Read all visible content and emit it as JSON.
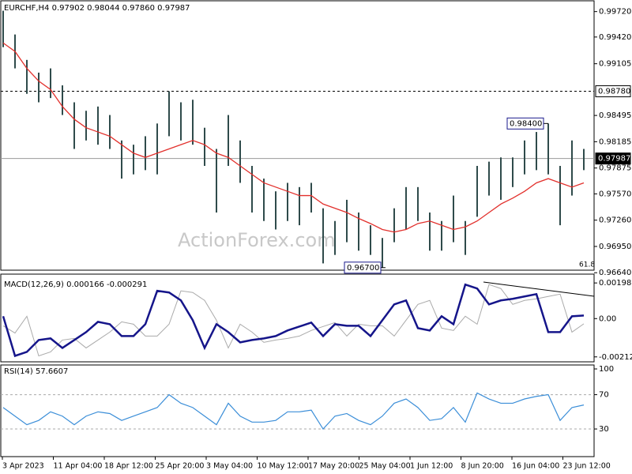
{
  "chart_data": [
    {
      "type": "ohlc",
      "title": "EURCHF,H4 0.97902 0.98044 0.97860 0.97987",
      "watermark": "ActionForex.com",
      "color": "#2f4b4b",
      "high": [
        0.9973,
        0.9945,
        0.9915,
        0.99,
        0.9905,
        0.9885,
        0.9865,
        0.9855,
        0.986,
        0.985,
        0.982,
        0.9815,
        0.9825,
        0.984,
        0.9878,
        0.9865,
        0.9868,
        0.9835,
        0.981,
        0.985,
        0.982,
        0.979,
        0.9775,
        0.976,
        0.977,
        0.9765,
        0.977,
        0.974,
        0.9725,
        0.975,
        0.9735,
        0.972,
        0.9705,
        0.974,
        0.9765,
        0.9765,
        0.9735,
        0.9725,
        0.9755,
        0.9725,
        0.979,
        0.9795,
        0.98,
        0.98,
        0.982,
        0.983,
        0.984,
        0.979,
        0.982,
        0.981
      ],
      "low": [
        0.993,
        0.9905,
        0.9875,
        0.9865,
        0.987,
        0.985,
        0.981,
        0.982,
        0.9815,
        0.981,
        0.9775,
        0.978,
        0.9785,
        0.978,
        0.9825,
        0.982,
        0.9815,
        0.979,
        0.9735,
        0.979,
        0.977,
        0.9735,
        0.9725,
        0.9715,
        0.9725,
        0.972,
        0.9735,
        0.9675,
        0.9685,
        0.97,
        0.969,
        0.9685,
        0.967,
        0.97,
        0.9715,
        0.9725,
        0.969,
        0.969,
        0.97,
        0.9685,
        0.973,
        0.9755,
        0.975,
        0.9765,
        0.978,
        0.9785,
        0.978,
        0.972,
        0.9755,
        0.9785
      ],
      "ma": {
        "color": "#e2302c",
        "values": [
          0.9935,
          0.9925,
          0.9905,
          0.989,
          0.988,
          0.986,
          0.9845,
          0.9835,
          0.983,
          0.9825,
          0.9815,
          0.9805,
          0.98,
          0.9805,
          0.981,
          0.9815,
          0.982,
          0.9815,
          0.9805,
          0.98,
          0.979,
          0.978,
          0.977,
          0.9765,
          0.976,
          0.9755,
          0.9755,
          0.9745,
          0.974,
          0.9735,
          0.9728,
          0.9722,
          0.9715,
          0.9712,
          0.9715,
          0.9722,
          0.9725,
          0.972,
          0.9715,
          0.9718,
          0.9725,
          0.9735,
          0.9745,
          0.9752,
          0.976,
          0.977,
          0.9775,
          0.977,
          0.9765,
          0.977
        ]
      },
      "ylim": [
        0.9667,
        0.9981
      ],
      "yticks": [
        {
          "value": 0.9972,
          "label": "0.99720"
        },
        {
          "value": 0.9942,
          "label": "0.99420"
        },
        {
          "value": 0.99105,
          "label": "0.99105"
        },
        {
          "value": 0.98495,
          "label": "0.98495"
        },
        {
          "value": 0.98185,
          "label": "0.98185"
        },
        {
          "value": 0.97875,
          "label": "0.97875"
        },
        {
          "value": 0.9757,
          "label": "0.97570"
        },
        {
          "value": 0.9726,
          "label": "0.97260"
        },
        {
          "value": 0.9695,
          "label": "0.96950"
        },
        {
          "value": 0.9664,
          "label": "0.96640"
        }
      ],
      "hlines": [
        {
          "value": 0.9878,
          "label": "0.98780",
          "style": "dashed"
        },
        {
          "value": 0.97987,
          "label": "0.97987",
          "style": "current"
        }
      ],
      "annotations": [
        {
          "text": "0.98400",
          "value": 0.984
        },
        {
          "text": "0.96700",
          "value": 0.967
        },
        {
          "text": "61.8"
        }
      ],
      "time_labels": [
        "3 Apr 2023",
        "11 Apr 04:00",
        "18 Apr 12:00",
        "25 Apr 20:00",
        "3 May 04:00",
        "10 May 12:00",
        "17 May 20:00",
        "25 May 04:00",
        "1 Jun 12:00",
        "8 Jun 20:00",
        "16 Jun 04:00",
        "23 Jun 12:00"
      ]
    },
    {
      "type": "macd",
      "title": "MACD(12,26,9) 0.000166 -0.000291",
      "series": [
        {
          "color": "#15158a",
          "values": [
            0.00013,
            -0.00207,
            -0.00185,
            -0.00119,
            -0.0011,
            -0.00163,
            -0.00119,
            -0.00075,
            -0.00018,
            -0.00031,
            -0.00097,
            -0.00097,
            -0.00031,
            0.00154,
            0.00145,
            0.00101,
            -9e-05,
            -0.00163,
            -0.00031,
            -0.00075,
            -0.00132,
            -0.00119,
            -0.0011,
            -0.00097,
            -0.00066,
            -0.00044,
            -0.00022,
            -0.00097,
            -0.00031,
            -0.0004,
            -0.0004,
            -0.00097,
            -9e-05,
            0.00079,
            0.00101,
            -0.00053,
            -0.00066,
            0.00013,
            -0.00031,
            0.00189,
            0.00167,
            0.00079,
            0.00101,
            0.0011,
            0.00123,
            0.00136,
            -0.00075,
            -0.00075,
            0.00013,
            0.00017
          ]
        },
        {
          "color": "#aaaaaa",
          "values": [
            -0.0004,
            -0.0008,
            0.00013,
            -0.00207,
            -0.00185,
            -0.00119,
            -0.0011,
            -0.00163,
            -0.00119,
            -0.00075,
            -0.00018,
            -0.00031,
            -0.00097,
            -0.00097,
            -0.00031,
            0.00154,
            0.00145,
            0.00101,
            -9e-05,
            -0.00163,
            -0.00031,
            -0.00075,
            -0.00132,
            -0.00119,
            -0.0011,
            -0.00097,
            -0.00066,
            -0.00044,
            -0.00022,
            -0.00097,
            -0.00031,
            -0.0004,
            -0.0004,
            -0.00097,
            -9e-05,
            0.00079,
            0.00101,
            -0.00053,
            -0.00066,
            0.00013,
            -0.00031,
            0.00189,
            0.00167,
            0.00079,
            0.00101,
            0.0011,
            0.00123,
            0.00136,
            -0.00075,
            -0.00029
          ]
        }
      ],
      "ylim": [
        -0.0024,
        0.00225
      ],
      "yticks": [
        {
          "value": 0.00198,
          "label": "0.00198"
        },
        {
          "value": 0,
          "label": "0.00"
        },
        {
          "value": -0.002126,
          "label": "-0.002126"
        }
      ]
    },
    {
      "type": "rsi",
      "title": "RSI(14) 57.6607",
      "color": "#3b8ed8",
      "values": [
        55,
        45,
        35,
        40,
        50,
        45,
        35,
        45,
        50,
        48,
        40,
        45,
        50,
        55,
        70,
        60,
        55,
        45,
        35,
        60,
        45,
        38,
        38,
        40,
        50,
        50,
        52,
        30,
        45,
        48,
        40,
        35,
        45,
        60,
        65,
        55,
        40,
        42,
        55,
        38,
        72,
        65,
        60,
        60,
        65,
        68,
        70,
        40,
        55,
        58
      ],
      "ylim": [
        -2.2,
        104.6
      ],
      "yticks": [
        100,
        70,
        30
      ],
      "grid_ticks": [
        70,
        30
      ]
    }
  ]
}
